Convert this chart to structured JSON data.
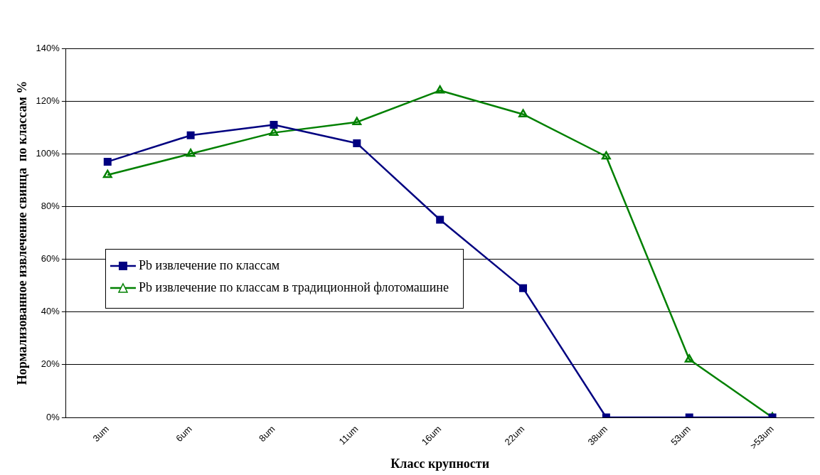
{
  "chart_data": {
    "type": "line",
    "xlabel": "Класс крупности",
    "ylabel": "Нормализованное извлечение свинца  по классам %",
    "categories": [
      "3um",
      "6um",
      "8um",
      "11um",
      "16um",
      "22um",
      "38um",
      "53um",
      ">53um"
    ],
    "series": [
      {
        "name": "Pb извлечение по классам",
        "color": "#000080",
        "marker": "square",
        "values": [
          97,
          107,
          111,
          104,
          75,
          49,
          0,
          0,
          0
        ]
      },
      {
        "name": "Pb извлечение по классам в традиционной флотомашине",
        "color": "#008000",
        "marker": "triangle",
        "values": [
          92,
          100,
          108,
          112,
          124,
          115,
          99,
          22,
          0
        ]
      }
    ],
    "ylim": [
      0,
      140
    ],
    "yticks": [
      {
        "value": 0,
        "label": "0%"
      },
      {
        "value": 20,
        "label": "20%"
      },
      {
        "value": 40,
        "label": "40%"
      },
      {
        "value": 60,
        "label": "60%"
      },
      {
        "value": 80,
        "label": "80%"
      },
      {
        "value": 100,
        "label": "100%"
      },
      {
        "value": 120,
        "label": "120%"
      },
      {
        "value": 140,
        "label": "140%"
      }
    ],
    "grid": "y",
    "legend": "left"
  }
}
